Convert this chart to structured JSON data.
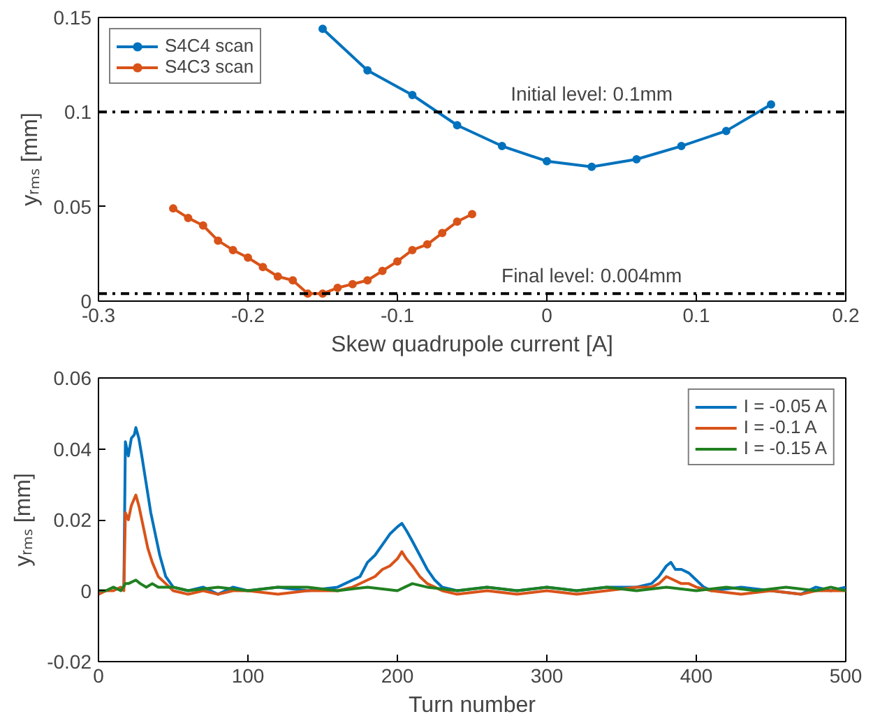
{
  "chart_data": [
    {
      "type": "line",
      "xlabel": "Skew quadrupole current [A]",
      "ylabel": "yᵣₘₛ [mm]",
      "xlim": [
        -0.3,
        0.2
      ],
      "ylim": [
        0,
        0.15
      ],
      "xticks": [
        -0.3,
        -0.2,
        -0.1,
        0,
        0.1,
        0.2
      ],
      "yticks": [
        0,
        0.05,
        0.1,
        0.15
      ],
      "grid": false,
      "legend": "top left",
      "marker": "circle",
      "series": [
        {
          "name": "S4C4 scan",
          "color": "#0072bd",
          "x": [
            -0.15,
            -0.12,
            -0.09,
            -0.06,
            -0.03,
            0,
            0.03,
            0.06,
            0.09,
            0.12,
            0.15
          ],
          "values": [
            0.144,
            0.122,
            0.109,
            0.093,
            0.082,
            0.074,
            0.071,
            0.075,
            0.082,
            0.09,
            0.104
          ]
        },
        {
          "name": "S4C3 scan",
          "color": "#d95319",
          "x": [
            -0.25,
            -0.24,
            -0.23,
            -0.22,
            -0.21,
            -0.2,
            -0.19,
            -0.18,
            -0.17,
            -0.16,
            -0.15,
            -0.14,
            -0.13,
            -0.12,
            -0.11,
            -0.1,
            -0.09,
            -0.08,
            -0.07,
            -0.06,
            -0.05
          ],
          "values": [
            0.049,
            0.044,
            0.04,
            0.032,
            0.027,
            0.023,
            0.018,
            0.013,
            0.011,
            0.004,
            0.004,
            0.007,
            0.009,
            0.011,
            0.016,
            0.021,
            0.027,
            0.03,
            0.036,
            0.042,
            0.046
          ]
        }
      ],
      "ref_lines": [
        {
          "axis": "y",
          "value": 0.1,
          "label": "Initial level: 0.1mm",
          "color": "#000000",
          "line_style": "dashdot"
        },
        {
          "axis": "y",
          "value": 0.004,
          "label": "Final level: 0.004mm",
          "color": "#000000",
          "line_style": "dashdot"
        }
      ]
    },
    {
      "type": "line",
      "xlabel": "Turn number",
      "ylabel": "yᵣₘₛ [mm]",
      "xlim": [
        0,
        500
      ],
      "ylim": [
        -0.02,
        0.06
      ],
      "xticks": [
        0,
        100,
        200,
        300,
        400,
        500
      ],
      "yticks": [
        -0.02,
        0,
        0.02,
        0.04,
        0.06
      ],
      "grid": false,
      "legend": "top right",
      "marker": "none",
      "series": [
        {
          "name": "I = -0.05 A",
          "color": "#0072bd",
          "x": [
            15,
            17,
            18,
            20,
            22,
            24,
            25,
            27,
            29,
            32,
            35,
            38,
            41,
            45,
            50,
            60,
            70,
            80,
            90,
            100,
            120,
            140,
            160,
            170,
            175,
            180,
            185,
            190,
            195,
            200,
            203,
            206,
            210,
            215,
            220,
            225,
            230,
            240,
            260,
            280,
            300,
            320,
            340,
            360,
            370,
            375,
            380,
            383,
            386,
            390,
            395,
            400,
            405,
            410,
            430,
            450,
            470,
            480,
            490,
            500
          ],
          "values": [
            0.0,
            0.001,
            0.042,
            0.038,
            0.043,
            0.044,
            0.046,
            0.043,
            0.038,
            0.03,
            0.022,
            0.016,
            0.01,
            0.004,
            0.001,
            0.0,
            0.001,
            -0.001,
            0.001,
            0.0,
            0.001,
            0.0,
            0.001,
            0.003,
            0.004,
            0.008,
            0.01,
            0.013,
            0.016,
            0.018,
            0.019,
            0.017,
            0.014,
            0.01,
            0.006,
            0.003,
            0.001,
            0.0,
            0.001,
            0.0,
            0.001,
            0.0,
            0.001,
            0.001,
            0.002,
            0.004,
            0.007,
            0.008,
            0.006,
            0.006,
            0.005,
            0.003,
            0.001,
            0.0,
            0.001,
            0.0,
            -0.001,
            0.001,
            0.0,
            0.001
          ]
        },
        {
          "name": "I = -0.1 A",
          "color": "#d95319",
          "x": [
            0,
            5,
            10,
            15,
            17,
            18,
            20,
            22,
            24,
            25,
            27,
            30,
            33,
            36,
            40,
            45,
            50,
            60,
            70,
            80,
            90,
            100,
            120,
            140,
            160,
            170,
            180,
            185,
            190,
            195,
            200,
            203,
            206,
            210,
            215,
            220,
            225,
            230,
            240,
            260,
            280,
            300,
            320,
            340,
            360,
            370,
            375,
            380,
            385,
            390,
            395,
            400,
            410,
            430,
            450,
            470,
            480,
            490,
            500
          ],
          "values": [
            -0.001,
            0.0,
            0.0,
            0.001,
            0.0,
            0.022,
            0.02,
            0.024,
            0.026,
            0.027,
            0.024,
            0.018,
            0.012,
            0.008,
            0.004,
            0.002,
            0.0,
            -0.001,
            0.0,
            -0.001,
            0.0,
            0.0,
            -0.001,
            0.0,
            0.0,
            0.001,
            0.003,
            0.004,
            0.006,
            0.007,
            0.009,
            0.011,
            0.009,
            0.007,
            0.004,
            0.002,
            0.001,
            0.0,
            -0.001,
            0.0,
            -0.001,
            0.0,
            -0.001,
            0.0,
            0.001,
            0.001,
            0.002,
            0.004,
            0.003,
            0.002,
            0.002,
            0.001,
            0.0,
            -0.001,
            0.0,
            -0.001,
            0.0,
            0.0,
            0.0
          ]
        },
        {
          "name": "I = -0.15 A",
          "color": "#208020",
          "x": [
            0,
            5,
            10,
            15,
            18,
            20,
            25,
            28,
            32,
            36,
            40,
            50,
            60,
            80,
            100,
            120,
            140,
            160,
            180,
            200,
            205,
            210,
            220,
            240,
            260,
            280,
            300,
            320,
            340,
            360,
            380,
            400,
            420,
            440,
            460,
            480,
            490,
            500
          ],
          "values": [
            0.0,
            0.0,
            0.001,
            0.0,
            0.002,
            0.002,
            0.003,
            0.002,
            0.001,
            0.002,
            0.001,
            0.001,
            0.0,
            0.001,
            0.0,
            0.001,
            0.001,
            0.0,
            0.001,
            0.0,
            0.001,
            0.002,
            0.001,
            0.0,
            0.001,
            0.0,
            0.001,
            0.0,
            0.001,
            0.0,
            0.001,
            0.0,
            0.001,
            0.0,
            0.001,
            0.0,
            0.001,
            0.0
          ]
        }
      ]
    }
  ]
}
